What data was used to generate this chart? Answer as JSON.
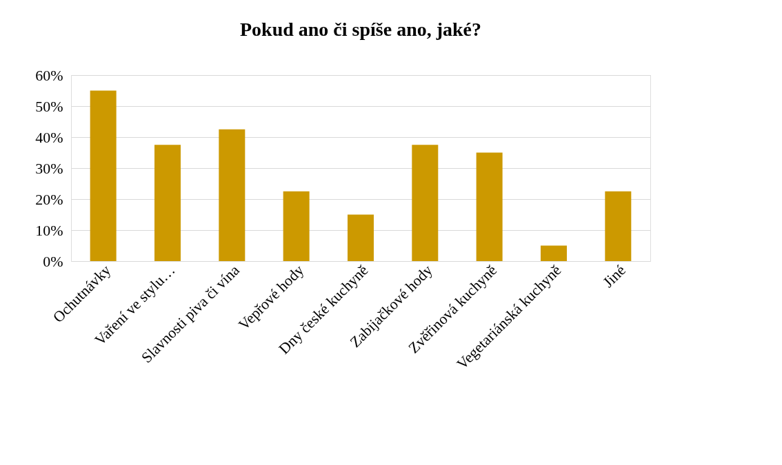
{
  "chart_data": {
    "type": "bar",
    "title": "Pokud ano či spíše ano, jaké?",
    "categories": [
      "Ochutnávky",
      "Vaření ve stylu…",
      "Slavnosti piva či vína",
      "Vepřové hody",
      "Dny české kuchyně",
      "Zabijačkové hody",
      "Zvěřinová kuchyně",
      "Vegetariánská kuchyně",
      "Jiné"
    ],
    "values": [
      55,
      37.5,
      42.5,
      22.5,
      15,
      37.5,
      35,
      5,
      22.5
    ],
    "color": "#cc9900",
    "ylim": [
      0,
      60
    ],
    "yticks": [
      {
        "value": 0,
        "label": "0%"
      },
      {
        "value": 10,
        "label": "10%"
      },
      {
        "value": 20,
        "label": "20%"
      },
      {
        "value": 30,
        "label": "30%"
      },
      {
        "value": 40,
        "label": "40%"
      },
      {
        "value": 50,
        "label": "50%"
      },
      {
        "value": 60,
        "label": "60%"
      }
    ],
    "grid": "y"
  }
}
